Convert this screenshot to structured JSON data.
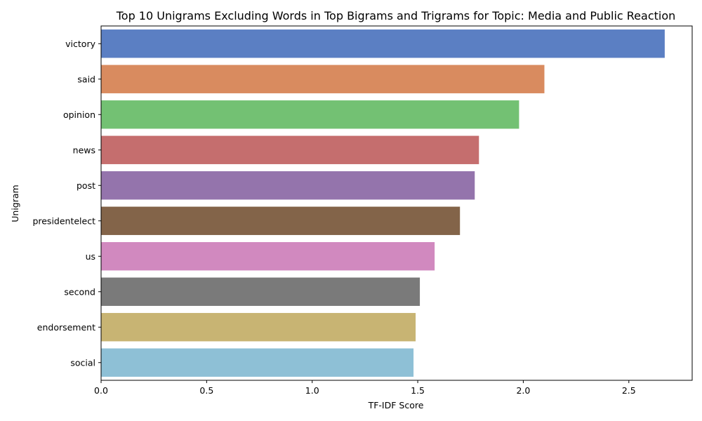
{
  "chart_data": {
    "type": "bar",
    "orientation": "horizontal",
    "title": "Top 10 Unigrams Excluding Words in Top Bigrams and Trigrams for Topic: Media and Public Reaction",
    "xlabel": "TF-IDF Score",
    "ylabel": "Unigram",
    "xlim": [
      0,
      2.8
    ],
    "xticks": [
      "0.0",
      "0.5",
      "1.0",
      "1.5",
      "2.0",
      "2.5"
    ],
    "grid": false,
    "legend": "none",
    "categories": [
      "victory",
      "said",
      "opinion",
      "news",
      "post",
      "presidentelect",
      "us",
      "second",
      "endorsement",
      "social"
    ],
    "values": [
      2.67,
      2.1,
      1.98,
      1.79,
      1.77,
      1.7,
      1.58,
      1.51,
      1.49,
      1.48
    ],
    "colors": [
      "#5b7fc3",
      "#d98b5f",
      "#73c173",
      "#c56e6e",
      "#9474ac",
      "#836449",
      "#d189bf",
      "#7a7a7a",
      "#c8b473",
      "#8ec0d6"
    ]
  }
}
